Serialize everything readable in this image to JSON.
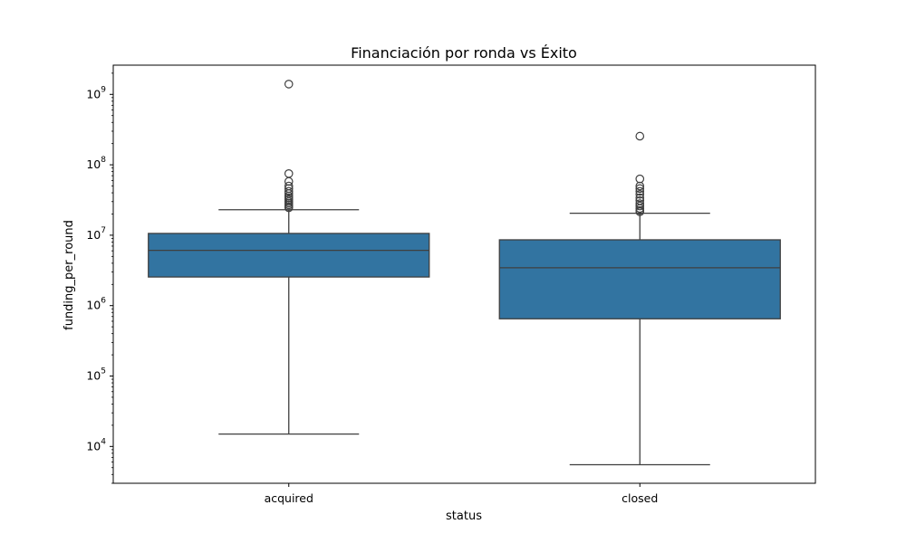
{
  "chart_data": {
    "type": "box",
    "title": "Financiación por ronda vs Éxito",
    "xlabel": "status",
    "ylabel": "funding_per_round",
    "yscale": "log",
    "ylim": [
      3000,
      2600000000
    ],
    "grid": false,
    "colors": {
      "box_fill": "#3274a1",
      "line": "#3f3f3f",
      "frame": "#000000"
    },
    "y_ticks": [
      {
        "value": 10000,
        "mantissa": "10",
        "exponent": "4"
      },
      {
        "value": 100000,
        "mantissa": "10",
        "exponent": "5"
      },
      {
        "value": 1000000,
        "mantissa": "10",
        "exponent": "6"
      },
      {
        "value": 10000000,
        "mantissa": "10",
        "exponent": "7"
      },
      {
        "value": 100000000,
        "mantissa": "10",
        "exponent": "8"
      },
      {
        "value": 1000000000,
        "mantissa": "10",
        "exponent": "9"
      }
    ],
    "categories": [
      "acquired",
      "closed"
    ],
    "boxes": [
      {
        "category": "acquired",
        "whisker_low": 15000,
        "q1": 2550000,
        "median": 6100000,
        "q3": 10600000,
        "whisker_high": 23000000,
        "outliers": [
          1400000000,
          75000000,
          58000000,
          50000000,
          46000000,
          42000000,
          39000000,
          36000000,
          34000000,
          32000000,
          30000000,
          28500000,
          27000000,
          25500000,
          24500000
        ]
      },
      {
        "category": "closed",
        "whisker_low": 5500,
        "q1": 650000,
        "median": 3450000,
        "q3": 8600000,
        "whisker_high": 20500000,
        "outliers": [
          255000000,
          63000000,
          50000000,
          46000000,
          42000000,
          38000000,
          34000000,
          31000000,
          28000000,
          26000000,
          24000000,
          22500000,
          21500000
        ]
      }
    ]
  }
}
